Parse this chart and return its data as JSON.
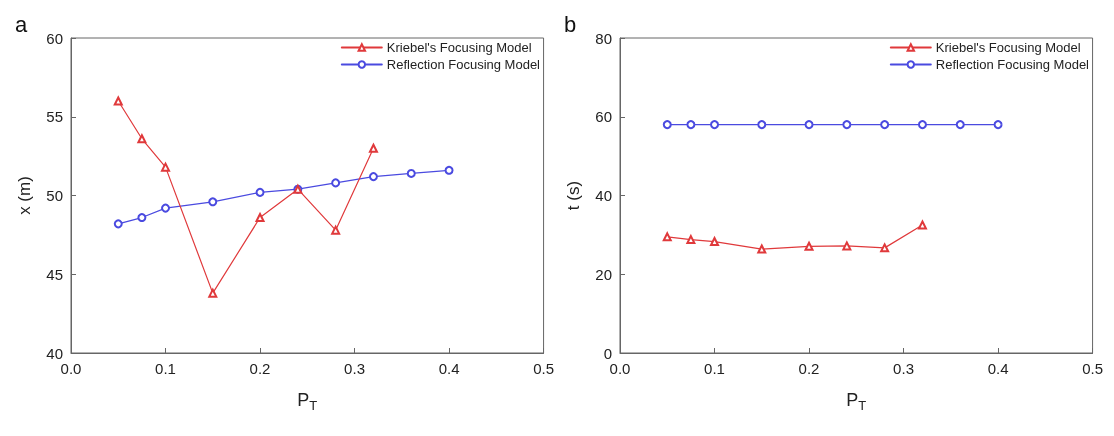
{
  "chart_data": [
    {
      "type": "line",
      "title": "a",
      "xlabel": "P$_{T}$",
      "ylabel": "x (m)",
      "xlim": [
        0,
        0.5
      ],
      "xticks": [
        {
          "value": 0,
          "label": "0.0"
        },
        0.1,
        0.2,
        0.3,
        0.4,
        0.5
      ],
      "ylim": [
        40,
        60
      ],
      "yticks": [
        40,
        45,
        50,
        55,
        60
      ],
      "grid": false,
      "legend": "top right",
      "line_style": "solid",
      "series": [
        {
          "name": "Kriebel's Focusing Model",
          "color": "#e0393b",
          "marker": "triangle",
          "x": [
            0.05,
            0.075,
            0.1,
            0.15,
            0.2,
            0.24,
            0.28,
            0.32
          ],
          "values": [
            56.0,
            53.6,
            51.8,
            43.8,
            48.6,
            50.4,
            47.8,
            53.0
          ]
        },
        {
          "name": "Reflection Focusing Model",
          "color": "#4a4ae0",
          "marker": "circle",
          "x": [
            0.05,
            0.075,
            0.1,
            0.15,
            0.2,
            0.24,
            0.28,
            0.32,
            0.36,
            0.4
          ],
          "values": [
            48.2,
            48.6,
            49.2,
            49.6,
            50.2,
            50.4,
            50.8,
            51.2,
            51.4,
            51.6
          ]
        }
      ]
    },
    {
      "type": "line",
      "title": "b",
      "xlabel": "P$_{T}$",
      "ylabel": "t (s)",
      "xlim": [
        0,
        0.5
      ],
      "xticks": [
        {
          "value": 0,
          "label": "0.0"
        },
        0.1,
        0.2,
        0.3,
        0.4,
        0.5
      ],
      "ylim": [
        0,
        80
      ],
      "yticks": [
        0,
        20,
        40,
        60,
        80
      ],
      "grid": false,
      "legend": "top right",
      "line_style": "solid",
      "series": [
        {
          "name": "Kriebel's Focusing Model",
          "color": "#e0393b",
          "marker": "triangle",
          "x": [
            0.05,
            0.075,
            0.1,
            0.15,
            0.2,
            0.24,
            0.28,
            0.32
          ],
          "values": [
            29.5,
            28.8,
            28.3,
            26.4,
            27.1,
            27.2,
            26.7,
            32.5
          ]
        },
        {
          "name": "Reflection Focusing Model",
          "color": "#4a4ae0",
          "marker": "circle",
          "x": [
            0.05,
            0.075,
            0.1,
            0.15,
            0.2,
            0.24,
            0.28,
            0.32,
            0.36,
            0.4
          ],
          "values": [
            58,
            58,
            58,
            58,
            58,
            58,
            58,
            58,
            58,
            58
          ]
        }
      ]
    }
  ]
}
